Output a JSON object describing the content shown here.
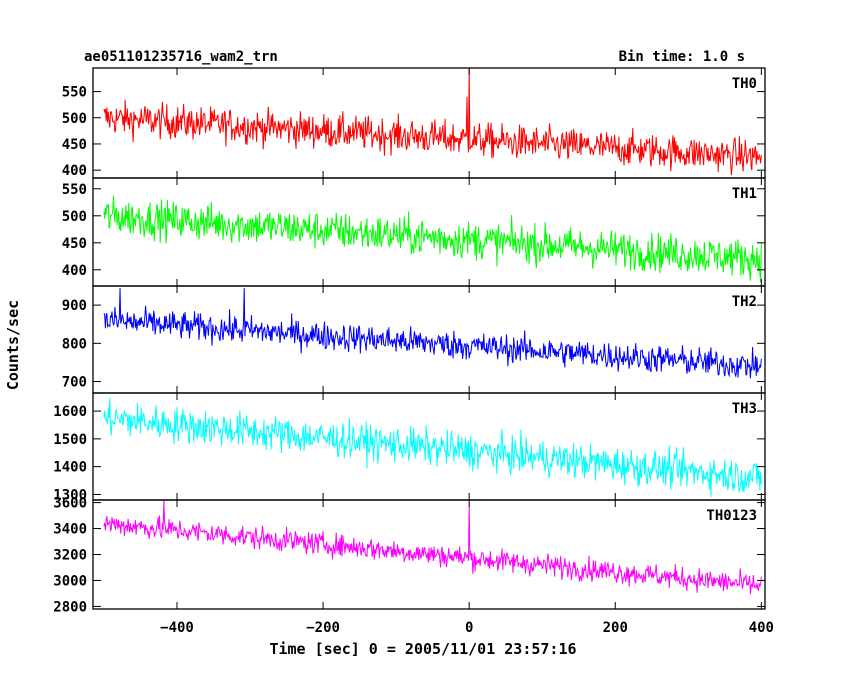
{
  "header": {
    "title": "ae051101235716_wam2_trn",
    "bin_time": "Bin time: 1.0 s"
  },
  "chart_data": {
    "type": "line",
    "xlabel": "Time [sec] 0 = 2005/11/01 23:57:16",
    "ylabel": "Counts/sec",
    "xlim": [
      -515,
      405
    ],
    "xticks": [
      -400,
      -200,
      0,
      200,
      400
    ],
    "x_tick_labels": [
      "−400",
      "−200",
      "0",
      "200",
      "400"
    ],
    "x_range": [
      -500,
      400
    ],
    "bin_time_s": 1.0,
    "series": [
      {
        "name": "TH0",
        "color": "#ff0000",
        "ylim": [
          385,
          595
        ],
        "yticks": [
          400,
          450,
          500,
          550
        ],
        "mean_start": 500,
        "mean_end": 425,
        "noise_amplitude": 28,
        "spikes": [
          {
            "x": 0,
            "y": 595
          },
          {
            "x": -3,
            "y": 540
          }
        ]
      },
      {
        "name": "TH1",
        "color": "#00ff00",
        "ylim": [
          370,
          570
        ],
        "yticks": [
          400,
          450,
          500,
          550
        ],
        "mean_start": 500,
        "mean_end": 420,
        "noise_amplitude": 30,
        "spikes": []
      },
      {
        "name": "TH2",
        "color": "#0000ff",
        "ylim": [
          670,
          950
        ],
        "yticks": [
          700,
          800,
          900
        ],
        "mean_start": 860,
        "mean_end": 740,
        "noise_amplitude": 32,
        "spikes": [
          {
            "x": -478,
            "y": 945
          },
          {
            "x": -308,
            "y": 945
          }
        ]
      },
      {
        "name": "TH3",
        "color": "#00ffff",
        "ylim": [
          1280,
          1665
        ],
        "yticks": [
          1300,
          1400,
          1500,
          1600
        ],
        "mean_start": 1575,
        "mean_end": 1360,
        "noise_amplitude": 55,
        "spikes": []
      },
      {
        "name": "TH0123",
        "color": "#ff00ff",
        "ylim": [
          2780,
          3620
        ],
        "yticks": [
          2800,
          3000,
          3200,
          3400,
          3600
        ],
        "mean_start": 3440,
        "mean_end": 2960,
        "noise_amplitude": 75,
        "spikes": [
          {
            "x": 0,
            "y": 3580
          },
          {
            "x": -418,
            "y": 3620
          }
        ]
      }
    ]
  }
}
